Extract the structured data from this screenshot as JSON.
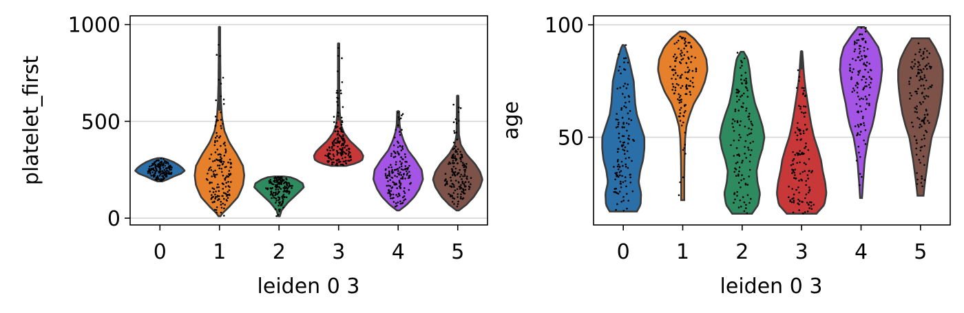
{
  "chart_data": [
    {
      "type": "violin",
      "xlabel": "leiden 0 3",
      "ylabel": "platelet_first",
      "categories": [
        "0",
        "1",
        "2",
        "3",
        "4",
        "5"
      ],
      "ylim": [
        -35,
        1045
      ],
      "yticks": [
        0,
        500,
        1000
      ],
      "grid": "horizontal",
      "points": "jittered strip overlay",
      "colors": [
        "#2a6fa8",
        "#e6802a",
        "#2e8b5f",
        "#c93838",
        "#a455e6",
        "#7d5248"
      ],
      "series": [
        {
          "category": "0",
          "min": 190,
          "max": 310,
          "median": 245,
          "density": [
            [
              190,
              0.1
            ],
            [
              200,
              0.3
            ],
            [
              215,
              0.55
            ],
            [
              230,
              0.85
            ],
            [
              245,
              1.0
            ],
            [
              260,
              0.9
            ],
            [
              275,
              0.75
            ],
            [
              290,
              0.55
            ],
            [
              303,
              0.3
            ],
            [
              310,
              0.1
            ]
          ]
        },
        {
          "category": "1",
          "min": 10,
          "max": 985,
          "median": 240,
          "density": [
            [
              10,
              0.04
            ],
            [
              25,
              0.12
            ],
            [
              60,
              0.4
            ],
            [
              110,
              0.75
            ],
            [
              170,
              0.95
            ],
            [
              220,
              1.0
            ],
            [
              270,
              0.95
            ],
            [
              330,
              0.7
            ],
            [
              390,
              0.4
            ],
            [
              450,
              0.2
            ],
            [
              520,
              0.1
            ],
            [
              600,
              0.06
            ],
            [
              700,
              0.04
            ],
            [
              850,
              0.03
            ],
            [
              985,
              0.02
            ]
          ]
        },
        {
          "category": "2",
          "min": 10,
          "max": 215,
          "median": 160,
          "density": [
            [
              10,
              0.03
            ],
            [
              40,
              0.1
            ],
            [
              80,
              0.35
            ],
            [
              110,
              0.6
            ],
            [
              140,
              0.85
            ],
            [
              160,
              1.0
            ],
            [
              180,
              0.95
            ],
            [
              200,
              0.7
            ],
            [
              212,
              0.45
            ],
            [
              215,
              0.2
            ]
          ]
        },
        {
          "category": "3",
          "min": 270,
          "max": 900,
          "median": 335,
          "density": [
            [
              270,
              0.3
            ],
            [
              285,
              0.75
            ],
            [
              300,
              0.95
            ],
            [
              320,
              1.0
            ],
            [
              345,
              0.9
            ],
            [
              370,
              0.7
            ],
            [
              400,
              0.45
            ],
            [
              440,
              0.22
            ],
            [
              480,
              0.1
            ],
            [
              540,
              0.05
            ],
            [
              620,
              0.03
            ],
            [
              750,
              0.02
            ],
            [
              900,
              0.02
            ]
          ]
        },
        {
          "category": "4",
          "min": 40,
          "max": 550,
          "median": 230,
          "density": [
            [
              40,
              0.05
            ],
            [
              70,
              0.35
            ],
            [
              110,
              0.65
            ],
            [
              150,
              0.85
            ],
            [
              200,
              1.0
            ],
            [
              250,
              0.95
            ],
            [
              300,
              0.7
            ],
            [
              350,
              0.4
            ],
            [
              400,
              0.22
            ],
            [
              440,
              0.12
            ],
            [
              480,
              0.06
            ],
            [
              550,
              0.04
            ]
          ]
        },
        {
          "category": "5",
          "min": 40,
          "max": 630,
          "median": 210,
          "density": [
            [
              40,
              0.05
            ],
            [
              70,
              0.35
            ],
            [
              110,
              0.65
            ],
            [
              160,
              0.9
            ],
            [
              200,
              1.0
            ],
            [
              240,
              0.9
            ],
            [
              280,
              0.7
            ],
            [
              330,
              0.35
            ],
            [
              380,
              0.12
            ],
            [
              430,
              0.05
            ],
            [
              500,
              0.04
            ],
            [
              630,
              0.03
            ]
          ]
        }
      ]
    },
    {
      "type": "violin",
      "xlabel": "leiden 0 3",
      "ylabel": "age",
      "categories": [
        "0",
        "1",
        "2",
        "3",
        "4",
        "5"
      ],
      "ylim": [
        11,
        104
      ],
      "yticks": [
        50,
        100
      ],
      "grid": "horizontal",
      "points": "jittered strip overlay",
      "colors": [
        "#2a6fa8",
        "#e6802a",
        "#2e8b5f",
        "#c93838",
        "#a455e6",
        "#7d5248"
      ],
      "series": [
        {
          "category": "0",
          "min": 17,
          "max": 91,
          "median": 45,
          "density": [
            [
              17,
              0.55
            ],
            [
              20,
              0.7
            ],
            [
              25,
              0.72
            ],
            [
              30,
              0.62
            ],
            [
              35,
              0.68
            ],
            [
              40,
              0.8
            ],
            [
              45,
              0.85
            ],
            [
              50,
              0.85
            ],
            [
              55,
              0.7
            ],
            [
              60,
              0.55
            ],
            [
              65,
              0.48
            ],
            [
              70,
              0.45
            ],
            [
              75,
              0.42
            ],
            [
              80,
              0.32
            ],
            [
              85,
              0.22
            ],
            [
              90,
              0.08
            ],
            [
              91,
              0.03
            ]
          ]
        },
        {
          "category": "1",
          "min": 22,
          "max": 97,
          "median": 78,
          "density": [
            [
              22,
              0.06
            ],
            [
              30,
              0.06
            ],
            [
              40,
              0.07
            ],
            [
              50,
              0.1
            ],
            [
              55,
              0.15
            ],
            [
              60,
              0.28
            ],
            [
              65,
              0.45
            ],
            [
              70,
              0.72
            ],
            [
              75,
              0.9
            ],
            [
              80,
              1.0
            ],
            [
              85,
              0.95
            ],
            [
              90,
              0.75
            ],
            [
              94,
              0.45
            ],
            [
              97,
              0.12
            ]
          ]
        },
        {
          "category": "2",
          "min": 16,
          "max": 88,
          "median": 50,
          "density": [
            [
              16,
              0.4
            ],
            [
              20,
              0.65
            ],
            [
              25,
              0.72
            ],
            [
              30,
              0.62
            ],
            [
              35,
              0.58
            ],
            [
              40,
              0.68
            ],
            [
              45,
              0.82
            ],
            [
              50,
              0.9
            ],
            [
              55,
              0.82
            ],
            [
              60,
              0.68
            ],
            [
              65,
              0.52
            ],
            [
              70,
              0.42
            ],
            [
              75,
              0.35
            ],
            [
              80,
              0.3
            ],
            [
              85,
              0.22
            ],
            [
              88,
              0.06
            ]
          ]
        },
        {
          "category": "3",
          "min": 16,
          "max": 88,
          "median": 35,
          "density": [
            [
              16,
              0.6
            ],
            [
              20,
              0.92
            ],
            [
              25,
              1.0
            ],
            [
              30,
              0.95
            ],
            [
              35,
              0.85
            ],
            [
              40,
              0.78
            ],
            [
              45,
              0.65
            ],
            [
              50,
              0.5
            ],
            [
              55,
              0.4
            ],
            [
              60,
              0.32
            ],
            [
              65,
              0.25
            ],
            [
              70,
              0.18
            ],
            [
              75,
              0.12
            ],
            [
              80,
              0.08
            ],
            [
              85,
              0.05
            ],
            [
              88,
              0.03
            ]
          ]
        },
        {
          "category": "4",
          "min": 23,
          "max": 99,
          "median": 70,
          "density": [
            [
              23,
              0.04
            ],
            [
              30,
              0.08
            ],
            [
              40,
              0.15
            ],
            [
              50,
              0.3
            ],
            [
              55,
              0.45
            ],
            [
              60,
              0.55
            ],
            [
              65,
              0.62
            ],
            [
              70,
              0.72
            ],
            [
              75,
              0.8
            ],
            [
              80,
              0.85
            ],
            [
              85,
              0.82
            ],
            [
              90,
              0.7
            ],
            [
              95,
              0.4
            ],
            [
              99,
              0.12
            ]
          ]
        },
        {
          "category": "5",
          "min": 24,
          "max": 94,
          "median": 65,
          "density": [
            [
              24,
              0.12
            ],
            [
              30,
              0.18
            ],
            [
              40,
              0.3
            ],
            [
              50,
              0.45
            ],
            [
              55,
              0.6
            ],
            [
              60,
              0.72
            ],
            [
              65,
              0.8
            ],
            [
              70,
              0.86
            ],
            [
              75,
              0.9
            ],
            [
              80,
              0.9
            ],
            [
              85,
              0.8
            ],
            [
              90,
              0.58
            ],
            [
              94,
              0.35
            ]
          ]
        }
      ]
    }
  ]
}
